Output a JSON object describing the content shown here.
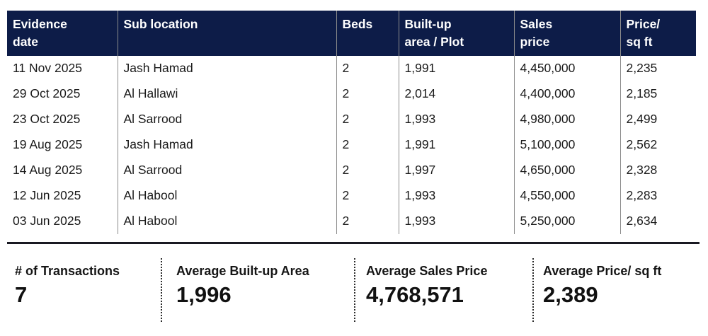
{
  "table": {
    "columns": [
      {
        "id": "evidence_date",
        "label": "Evidence\ndate"
      },
      {
        "id": "sub_location",
        "label": "Sub location"
      },
      {
        "id": "beds",
        "label": "Beds"
      },
      {
        "id": "built_up_area",
        "label": "Built-up\narea / Plot"
      },
      {
        "id": "sales_price",
        "label": "Sales\nprice"
      },
      {
        "id": "price_sqft",
        "label": "Price/\nsq ft"
      }
    ],
    "rows": [
      {
        "date": "11 Nov 2025",
        "location": "Jash Hamad",
        "beds": "2",
        "area": "1,991",
        "price": "4,450,000",
        "ppsf": "2,235"
      },
      {
        "date": "29 Oct 2025",
        "location": "Al Hallawi",
        "beds": "2",
        "area": "2,014",
        "price": "4,400,000",
        "ppsf": "2,185"
      },
      {
        "date": "23 Oct 2025",
        "location": "Al Sarrood",
        "beds": "2",
        "area": "1,993",
        "price": "4,980,000",
        "ppsf": "2,499"
      },
      {
        "date": "19 Aug 2025",
        "location": "Jash Hamad",
        "beds": "2",
        "area": "1,991",
        "price": "5,100,000",
        "ppsf": "2,562"
      },
      {
        "date": "14 Aug 2025",
        "location": "Al Sarrood",
        "beds": "2",
        "area": "1,997",
        "price": "4,650,000",
        "ppsf": "2,328"
      },
      {
        "date": "12 Jun 2025",
        "location": "Al Habool",
        "beds": "2",
        "area": "1,993",
        "price": "4,550,000",
        "ppsf": "2,283"
      },
      {
        "date": "03 Jun 2025",
        "location": "Al Habool",
        "beds": "2",
        "area": "1,993",
        "price": "5,250,000",
        "ppsf": "2,634"
      }
    ]
  },
  "summary": {
    "items": [
      {
        "label": "# of Transactions",
        "value": "7"
      },
      {
        "label": "Average Built-up Area",
        "value": "1,996"
      },
      {
        "label": "Average Sales Price",
        "value": "4,768,571"
      },
      {
        "label": "Average Price/ sq ft",
        "value": "2,389"
      }
    ]
  },
  "colors": {
    "header_bg": "#0d1c48",
    "header_text": "#ffffff",
    "body_text": "#1a1a1a",
    "column_divider": "#8c8c8c",
    "separator_line": "#191922",
    "dotted_divider": "#2b2b2b"
  }
}
